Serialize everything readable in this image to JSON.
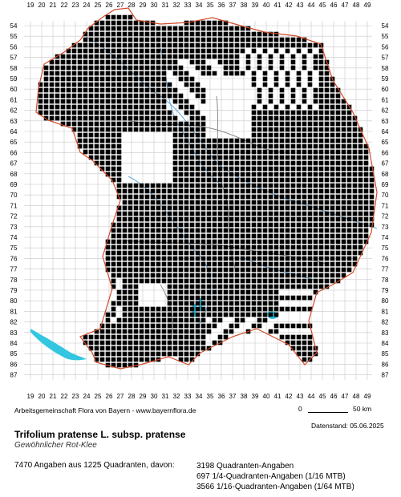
{
  "map": {
    "x_labels": [
      "19",
      "20",
      "21",
      "22",
      "23",
      "24",
      "25",
      "26",
      "27",
      "28",
      "29",
      "30",
      "31",
      "32",
      "33",
      "34",
      "35",
      "36",
      "37",
      "38",
      "39",
      "40",
      "41",
      "42",
      "43",
      "44",
      "45",
      "46",
      "47",
      "48",
      "49"
    ],
    "y_labels": [
      "54",
      "55",
      "56",
      "57",
      "58",
      "59",
      "60",
      "61",
      "62",
      "63",
      "64",
      "65",
      "66",
      "67",
      "68",
      "69",
      "70",
      "71",
      "72",
      "73",
      "74",
      "75",
      "76",
      "77",
      "78",
      "79",
      "80",
      "81",
      "82",
      "83",
      "84",
      "85",
      "86",
      "87"
    ],
    "colors": {
      "grid": "#c8c8c8",
      "dots": "#000000",
      "border": "#d04a2a",
      "rivers": "#66aadd",
      "districts": "#8c8c8c",
      "lakes": "#33c6e0"
    }
  },
  "credit": "Arbeitsgemeinschaft Flora von Bayern - www.bayernflora.de",
  "scale": {
    "zero": "0",
    "km": "50 km"
  },
  "date": "Datenstand: 05.06.2025",
  "species": {
    "name": "Trifolium pratense L. subsp. pratense",
    "common": "Gewöhnlicher Rot-Klee"
  },
  "stats": {
    "summary": "7470 Angaben aus 1225 Quadranten, davon:",
    "lines": [
      "3198 Quadranten-Angaben",
      "697 1/4-Quadranten-Angaben (1/16 MTB)",
      "3566 1/16-Quadranten-Angaben (1/64 MTB)"
    ]
  }
}
